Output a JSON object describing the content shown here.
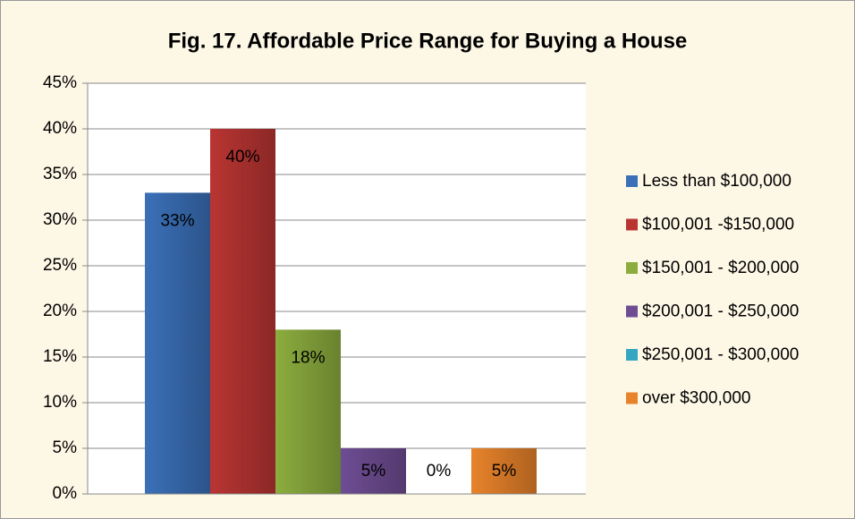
{
  "chart_data": {
    "type": "bar",
    "title": "Fig. 17.  Affordable Price Range for Buying a House",
    "series": [
      {
        "name": "Less than $100,000",
        "color": "#3b70b8",
        "values": [
          33
        ],
        "value_labels": [
          "33%"
        ]
      },
      {
        "name": "$100,001 -$150,000",
        "color": "#b93532",
        "values": [
          40
        ],
        "value_labels": [
          "40%"
        ]
      },
      {
        "name": "$150,001 - $200,000",
        "color": "#8cad3e",
        "values": [
          18
        ],
        "value_labels": [
          "18%"
        ]
      },
      {
        "name": "$200,001 - $250,000",
        "color": "#6e4d93",
        "values": [
          5
        ],
        "value_labels": [
          "5%"
        ]
      },
      {
        "name": "$250,001 - $300,000",
        "color": "#33a6c2",
        "values": [
          0
        ],
        "value_labels": [
          "0%"
        ]
      },
      {
        "name": "over $300,000",
        "color": "#e8832b",
        "values": [
          5
        ],
        "value_labels": [
          "5%"
        ]
      }
    ],
    "ylim": [
      0,
      45
    ],
    "yticks": [
      {
        "value": 0,
        "label": "0%"
      },
      {
        "value": 5,
        "label": "5%"
      },
      {
        "value": 10,
        "label": "10%"
      },
      {
        "value": 15,
        "label": "15%"
      },
      {
        "value": 20,
        "label": "20%"
      },
      {
        "value": 25,
        "label": "25%"
      },
      {
        "value": 30,
        "label": "30%"
      },
      {
        "value": 35,
        "label": "35%"
      },
      {
        "value": 40,
        "label": "40%"
      },
      {
        "value": 45,
        "label": "45%"
      }
    ],
    "grid": true,
    "legend": "right"
  }
}
